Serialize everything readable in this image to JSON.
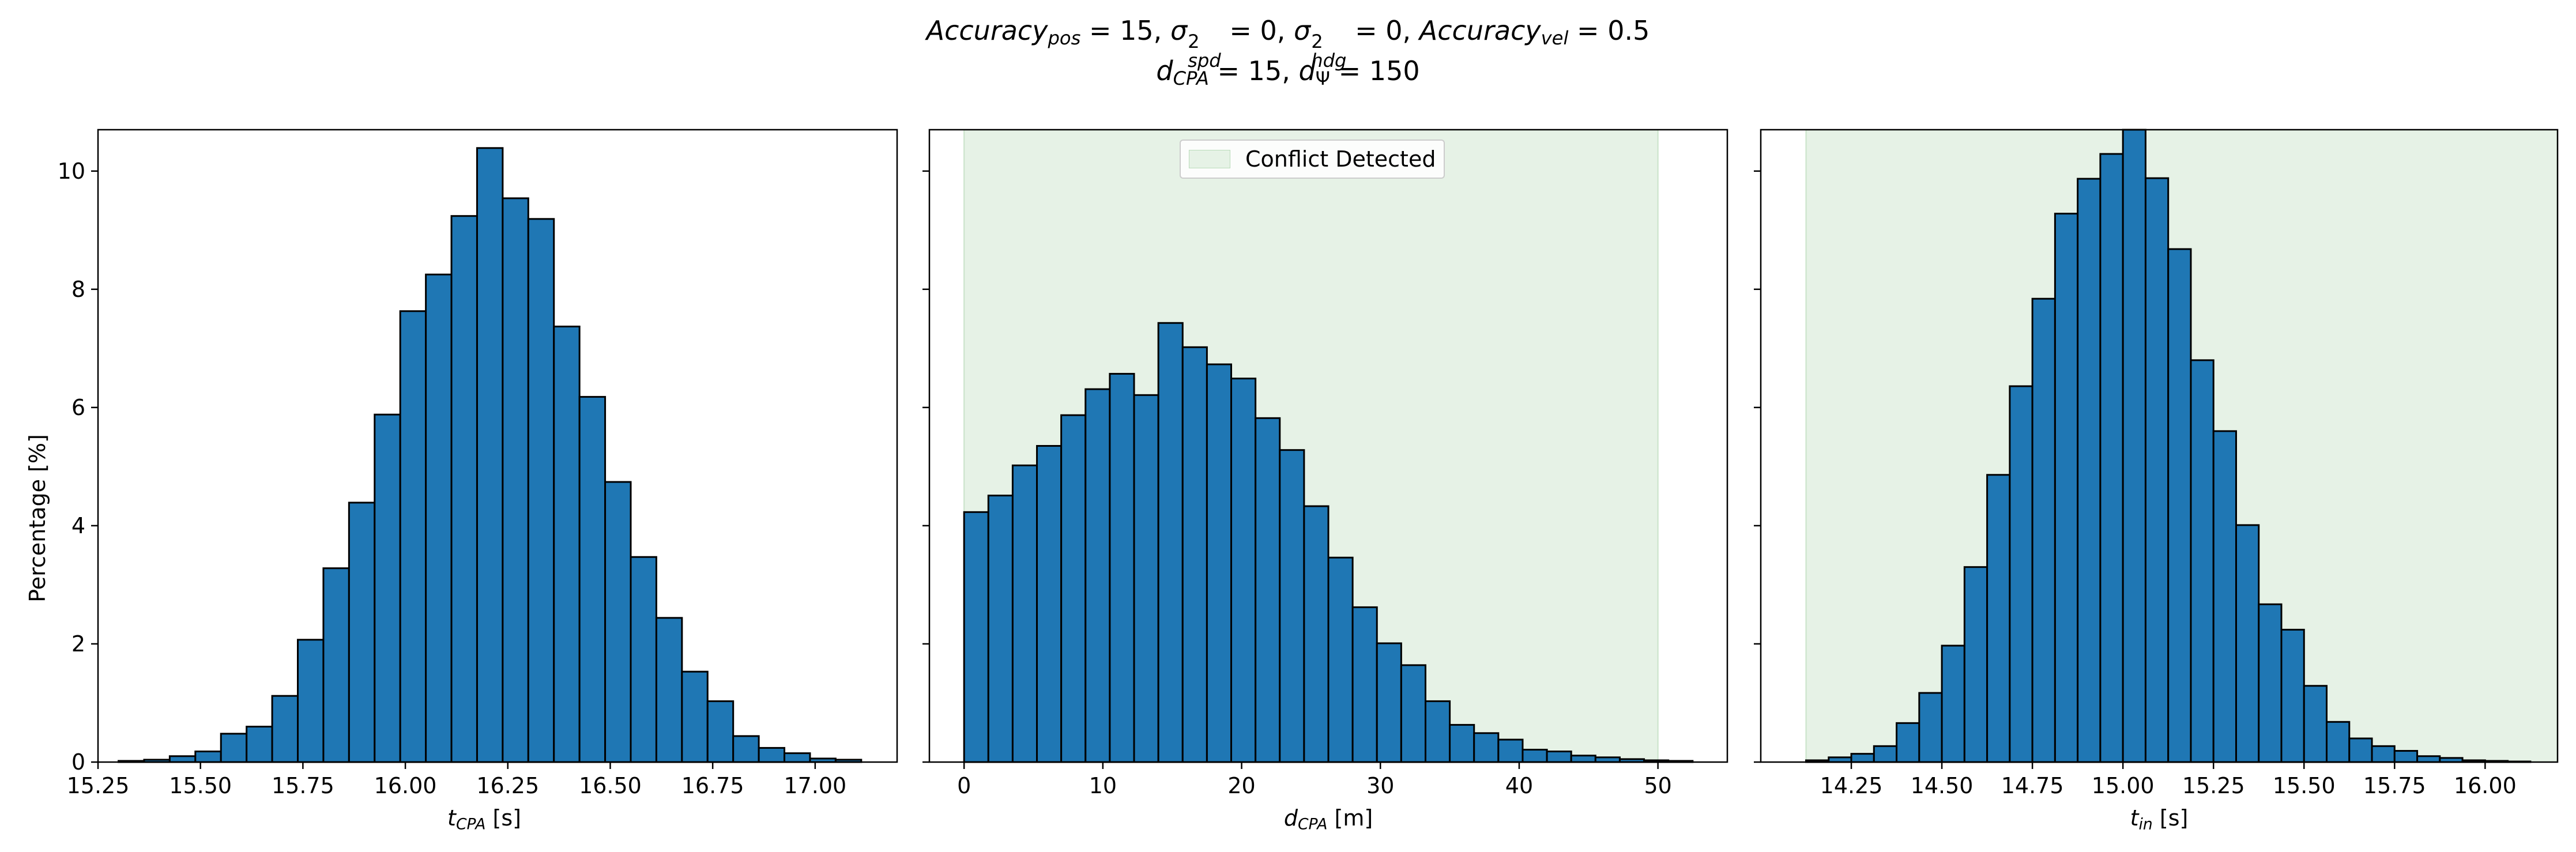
{
  "figure": {
    "title_line1": {
      "acc_pos_word": "Accuracy",
      "acc_pos_sub": "pos",
      "acc_pos_val": "= 15,",
      "sigma_spd": "σ",
      "sigma_spd_sup": "2",
      "sigma_spd_sub": "spd",
      "sigma_spd_val": "= 0,",
      "sigma_hdg": "σ",
      "sigma_hdg_sup": "2",
      "sigma_hdg_sub": "hdg",
      "sigma_hdg_val": "= 0,",
      "acc_vel_word": "Accuracy",
      "acc_vel_sub": "vel",
      "acc_vel_val": "= 0.5"
    },
    "title_line2": {
      "d_cpa": "d",
      "d_cpa_sub": "CPA",
      "d_cpa_val": "= 15,",
      "d_psi": "d",
      "d_psi_sub": "Ψ",
      "d_psi_val": "= 150"
    }
  },
  "colors": {
    "bar_fill": "#1f77b4",
    "bar_edge": "#000000",
    "conflict_region": "#e6f2e6"
  },
  "chart_data": [
    {
      "type": "bar",
      "subtype": "histogram",
      "xlabel": {
        "var": "t",
        "sub": "CPA",
        "unit": "[s]"
      },
      "ylabel": "Percentage [%]",
      "xlim": [
        15.25,
        17.2
      ],
      "ylim": [
        0,
        10.7
      ],
      "xticks": [
        15.25,
        15.5,
        15.75,
        16.0,
        16.25,
        16.5,
        16.75,
        17.0
      ],
      "xtick_labels": [
        "15.25",
        "15.50",
        "15.75",
        "16.00",
        "16.25",
        "16.50",
        "16.75",
        "17.00"
      ],
      "yticks": [
        0,
        2,
        4,
        6,
        8,
        10
      ],
      "ytick_labels": [
        "0",
        "2",
        "4",
        "6",
        "8",
        "10"
      ],
      "bin_width": 0.0625,
      "bin_starts": [
        15.3,
        15.3625,
        15.425,
        15.4875,
        15.55,
        15.6125,
        15.675,
        15.7375,
        15.8,
        15.8625,
        15.925,
        15.9875,
        16.05,
        16.1125,
        16.175,
        16.2375,
        16.3,
        16.3625,
        16.425,
        16.4875,
        16.55,
        16.6125,
        16.675,
        16.7375,
        16.8,
        16.8625,
        16.925,
        16.9875,
        17.05
      ],
      "values": [
        0.02,
        0.04,
        0.1,
        0.18,
        0.48,
        0.6,
        1.12,
        2.07,
        3.28,
        4.39,
        5.88,
        7.63,
        8.25,
        9.24,
        10.39,
        9.54,
        9.19,
        7.37,
        6.18,
        4.74,
        3.47,
        2.44,
        1.53,
        1.03,
        0.44,
        0.24,
        0.15,
        0.06,
        0.04
      ],
      "grid": false
    },
    {
      "type": "bar",
      "subtype": "histogram",
      "xlabel": {
        "var": "d",
        "sub": "CPA",
        "unit": "[m]"
      },
      "xlim": [
        -2.5,
        55
      ],
      "ylim": [
        0,
        10.7
      ],
      "xticks": [
        0,
        10,
        20,
        30,
        40,
        50
      ],
      "xtick_labels": [
        "0",
        "10",
        "20",
        "30",
        "40",
        "50"
      ],
      "yticks": [
        0,
        2,
        4,
        6,
        8,
        10
      ],
      "bin_width": 1.75,
      "bin_starts": [
        0,
        1.75,
        3.5,
        5.25,
        7.0,
        8.75,
        10.5,
        12.25,
        14.0,
        15.75,
        17.5,
        19.25,
        21.0,
        22.75,
        24.5,
        26.25,
        28.0,
        29.75,
        31.5,
        33.25,
        35.0,
        36.75,
        38.5,
        40.25,
        42.0,
        43.75,
        45.5,
        47.25,
        49.0,
        50.75
      ],
      "values": [
        4.23,
        4.51,
        5.02,
        5.35,
        5.87,
        6.31,
        6.57,
        6.21,
        7.43,
        7.02,
        6.73,
        6.49,
        5.82,
        5.28,
        4.33,
        3.46,
        2.62,
        2.01,
        1.64,
        1.03,
        0.63,
        0.49,
        0.38,
        0.21,
        0.18,
        0.11,
        0.08,
        0.05,
        0.03,
        0.02
      ],
      "shaded_region": {
        "label": "Conflict Detected",
        "x_range": [
          0,
          50
        ]
      },
      "legend_position": "upper center",
      "grid": false
    },
    {
      "type": "bar",
      "subtype": "histogram",
      "xlabel": {
        "var": "t",
        "sub": "in",
        "unit": "[s]"
      },
      "xlim": [
        14.0,
        16.2
      ],
      "ylim": [
        0,
        10.7
      ],
      "xticks": [
        14.25,
        14.5,
        14.75,
        15.0,
        15.25,
        15.5,
        15.75,
        16.0
      ],
      "xtick_labels": [
        "14.25",
        "14.50",
        "14.75",
        "15.00",
        "15.25",
        "15.50",
        "15.75",
        "16.00"
      ],
      "yticks": [
        0,
        2,
        4,
        6,
        8,
        10
      ],
      "bin_width": 0.0625,
      "bin_starts": [
        14.125,
        14.1875,
        14.25,
        14.3125,
        14.375,
        14.4375,
        14.5,
        14.5625,
        14.625,
        14.6875,
        14.75,
        14.8125,
        14.875,
        14.9375,
        15.0,
        15.0625,
        15.125,
        15.1875,
        15.25,
        15.3125,
        15.375,
        15.4375,
        15.5,
        15.5625,
        15.625,
        15.6875,
        15.75,
        15.8125,
        15.875,
        15.9375,
        16.0,
        16.0625
      ],
      "values": [
        0.03,
        0.08,
        0.14,
        0.27,
        0.66,
        1.17,
        1.97,
        3.3,
        4.86,
        6.36,
        7.84,
        9.28,
        9.87,
        10.29,
        10.7,
        9.88,
        8.68,
        6.8,
        5.6,
        4.01,
        2.67,
        2.24,
        1.29,
        0.68,
        0.4,
        0.27,
        0.19,
        0.1,
        0.07,
        0.03,
        0.02,
        0.01
      ],
      "shaded_region": {
        "label": "Conflict Detected",
        "x_range": [
          14.125,
          16.5
        ]
      },
      "grid": false
    }
  ]
}
